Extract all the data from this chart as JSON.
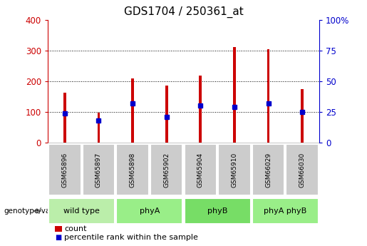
{
  "title": "GDS1704 / 250361_at",
  "samples": [
    "GSM65896",
    "GSM65897",
    "GSM65898",
    "GSM65902",
    "GSM65904",
    "GSM65910",
    "GSM66029",
    "GSM66030"
  ],
  "counts": [
    163,
    98,
    210,
    185,
    218,
    310,
    305,
    175
  ],
  "percentile_ranks": [
    24,
    18,
    32,
    21,
    30,
    29,
    32,
    25
  ],
  "groups": [
    {
      "label": "wild type",
      "indices": [
        0,
        1
      ],
      "color": "#bbeeaa"
    },
    {
      "label": "phyA",
      "indices": [
        2,
        3
      ],
      "color": "#99ee88"
    },
    {
      "label": "phyB",
      "indices": [
        4,
        5
      ],
      "color": "#77dd66"
    },
    {
      "label": "phyA phyB",
      "indices": [
        6,
        7
      ],
      "color": "#99ee88"
    }
  ],
  "bar_color": "#cc0000",
  "dot_color": "#0000cc",
  "ylim_left": [
    0,
    400
  ],
  "ylim_right": [
    0,
    100
  ],
  "yticks_left": [
    0,
    100,
    200,
    300,
    400
  ],
  "yticks_right": [
    0,
    25,
    50,
    75,
    100
  ],
  "yticklabels_right": [
    "0",
    "25",
    "50",
    "75",
    "100%"
  ],
  "grid_values": [
    100,
    200,
    300
  ],
  "bar_width": 0.08,
  "tick_label_bg": "#cccccc",
  "left_axis_color": "#cc0000",
  "right_axis_color": "#0000cc"
}
